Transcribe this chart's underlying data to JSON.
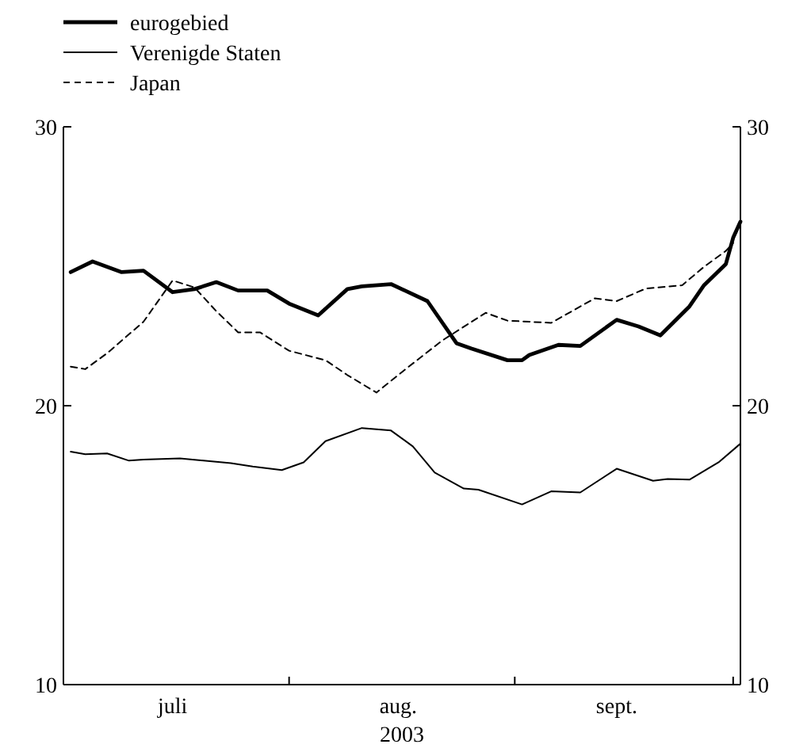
{
  "chart_data": {
    "type": "line",
    "xlabel": "2003",
    "xlim": [
      "2003-07-01",
      "2003-10-02"
    ],
    "xticks": [
      {
        "value": "2003-07-16",
        "label": "juli"
      },
      {
        "value": "2003-08-16",
        "label": "aug."
      },
      {
        "value": "2003-09-15",
        "label": "sept."
      },
      {
        "value": "2003-08-01",
        "label": null
      },
      {
        "value": "2003-09-01",
        "label": null
      },
      {
        "value": "2003-10-01",
        "label": null
      }
    ],
    "ylim": [
      10,
      30
    ],
    "yticks": [
      10,
      20,
      30
    ],
    "y2lim": [
      10,
      30
    ],
    "y2ticks": [
      10,
      20,
      30
    ],
    "legend": "top left",
    "grid": false,
    "marker": "none",
    "series": [
      {
        "name": "eurogebied",
        "color": "#000000",
        "line_style": "solid",
        "x": [
          "2003-07-02",
          "2003-07-05",
          "2003-07-09",
          "2003-07-12",
          "2003-07-16",
          "2003-07-19",
          "2003-07-22",
          "2003-07-25",
          "2003-07-29",
          "2003-08-01",
          "2003-08-05",
          "2003-08-09",
          "2003-08-11",
          "2003-08-15",
          "2003-08-20",
          "2003-08-24",
          "2003-08-26",
          "2003-08-31",
          "2003-09-02",
          "2003-09-03",
          "2003-09-07",
          "2003-09-10",
          "2003-09-15",
          "2003-09-18",
          "2003-09-21",
          "2003-09-25",
          "2003-09-27",
          "2003-09-30",
          "2003-10-01",
          "2003-10-02"
        ],
        "values": [
          24.79,
          25.17,
          24.79,
          24.84,
          24.07,
          24.18,
          24.43,
          24.13,
          24.13,
          23.66,
          23.24,
          24.18,
          24.28,
          24.36,
          23.75,
          22.24,
          22.05,
          21.63,
          21.63,
          21.82,
          22.18,
          22.14,
          23.08,
          22.84,
          22.52,
          23.56,
          24.32,
          25.08,
          26.02,
          26.6
        ]
      },
      {
        "name": "Verenigde Staten",
        "color": "#000000",
        "line_style": "solid",
        "x": [
          "2003-07-02",
          "2003-07-04",
          "2003-07-07",
          "2003-07-10",
          "2003-07-12",
          "2003-07-17",
          "2003-07-24",
          "2003-07-27",
          "2003-07-31",
          "2003-08-03",
          "2003-08-06",
          "2003-08-11",
          "2003-08-15",
          "2003-08-18",
          "2003-08-21",
          "2003-08-25",
          "2003-08-27",
          "2003-09-02",
          "2003-09-06",
          "2003-09-10",
          "2003-09-15",
          "2003-09-20",
          "2003-09-22",
          "2003-09-25",
          "2003-09-29",
          "2003-10-02"
        ],
        "values": [
          18.35,
          18.26,
          18.29,
          18.03,
          18.07,
          18.11,
          17.94,
          17.82,
          17.69,
          17.97,
          18.73,
          19.2,
          19.11,
          18.54,
          17.6,
          17.03,
          16.99,
          16.46,
          16.93,
          16.89,
          17.74,
          17.31,
          17.37,
          17.35,
          17.97,
          18.64
        ]
      },
      {
        "name": "Japan",
        "color": "#000000",
        "line_style": "dashed",
        "x": [
          "2003-07-02",
          "2003-07-04",
          "2003-07-07",
          "2003-07-12",
          "2003-07-16",
          "2003-07-19",
          "2003-07-22",
          "2003-07-25",
          "2003-07-28",
          "2003-08-01",
          "2003-08-06",
          "2003-08-09",
          "2003-08-13",
          "2003-08-17",
          "2003-08-22",
          "2003-08-28",
          "2003-08-31",
          "2003-09-06",
          "2003-09-12",
          "2003-09-15",
          "2003-09-19",
          "2003-09-24",
          "2003-09-27",
          "2003-09-30",
          "2003-10-01"
        ],
        "values": [
          21.4,
          21.31,
          21.88,
          23.01,
          24.49,
          24.24,
          23.39,
          22.63,
          22.63,
          21.97,
          21.63,
          21.1,
          20.47,
          21.31,
          22.33,
          23.33,
          23.05,
          22.97,
          23.85,
          23.75,
          24.2,
          24.32,
          24.98,
          25.55,
          25.83
        ]
      }
    ]
  }
}
